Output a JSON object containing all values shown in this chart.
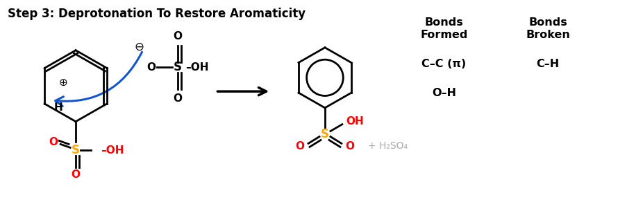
{
  "title": "Step 3: Deprotonation To Restore Aromaticity",
  "title_fontsize": 12,
  "title_fontweight": "bold",
  "bg_color": "#ffffff",
  "black": "#000000",
  "orange": "#FFA500",
  "red": "#FF0000",
  "blue": "#1155CC",
  "gray": "#aaaaaa",
  "bonds_formed_label": "Bonds\nFormed",
  "bonds_broken_label": "Bonds\nBroken",
  "bond_formed_1": "C–C (π)",
  "bond_formed_2": "O–H",
  "bond_broken_1": "C–H",
  "plus_h2so4": "+ H₂SO₄"
}
